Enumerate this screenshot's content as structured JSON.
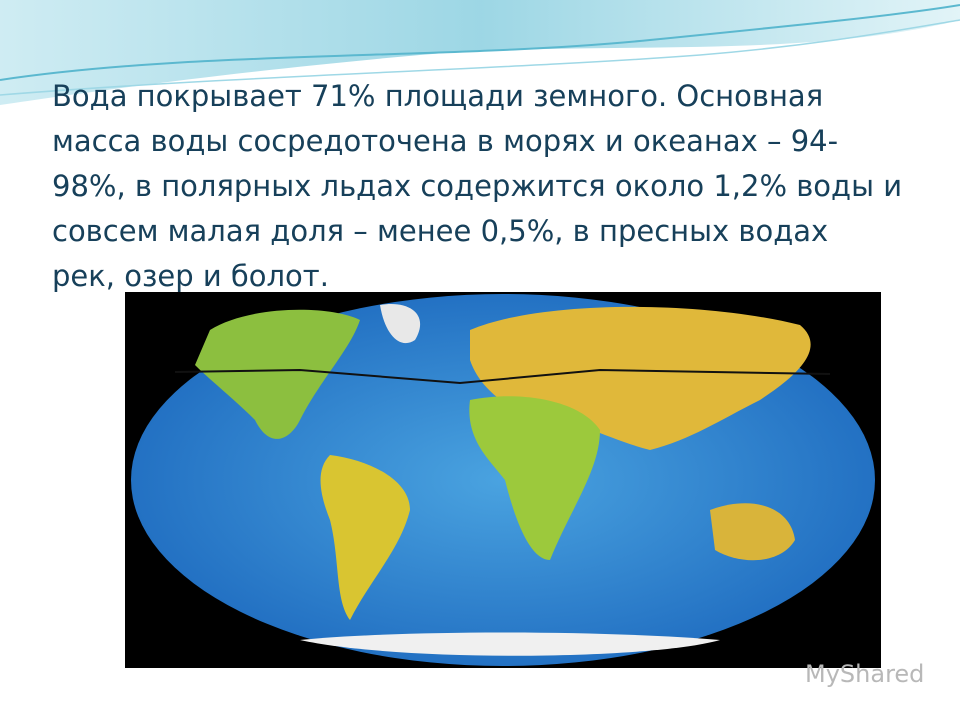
{
  "slide": {
    "text_lines": [
      "Вода покрывает 71% площади земного. Основная",
      "масса воды сосредоточена в морях и океанах – 94-",
      "98%, в полярных льдах содержится около 1,2% воды и",
      "совсем малая доля – менее 0,5%, в пресных водах",
      "рек, озер и болот."
    ],
    "watermark": "MyShared"
  }
}
